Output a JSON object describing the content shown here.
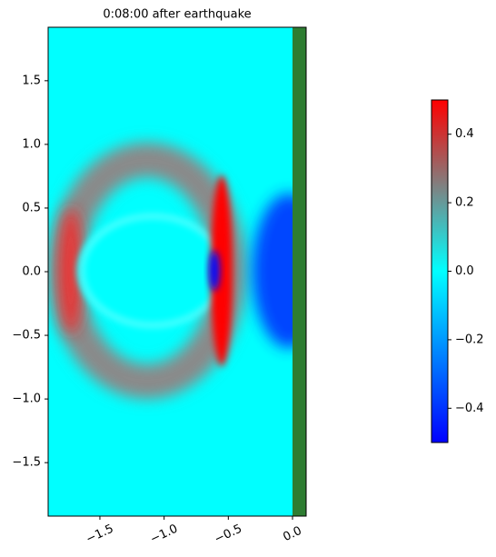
{
  "chart_data": {
    "type": "heatmap",
    "title": "0:08:00 after earthquake",
    "xlim": [
      -1.903,
      0.106
    ],
    "ylim": [
      -1.92,
      1.92
    ],
    "xticks": [
      {
        "value": -1.5,
        "label": "−1.5"
      },
      {
        "value": -1.0,
        "label": "−1.0"
      },
      {
        "value": -0.5,
        "label": "−0.5"
      },
      {
        "value": 0.0,
        "label": "0.0"
      }
    ],
    "yticks": [
      {
        "value": -1.5,
        "label": "−1.5"
      },
      {
        "value": -1.0,
        "label": "−1.0"
      },
      {
        "value": -0.5,
        "label": "−0.5"
      },
      {
        "value": 0.0,
        "label": "0.0"
      },
      {
        "value": 0.5,
        "label": "0.5"
      },
      {
        "value": 1.0,
        "label": "1.0"
      },
      {
        "value": 1.5,
        "label": "1.5"
      }
    ],
    "land_color": "#2e7d32",
    "colorbar": {
      "lim": [
        -0.5,
        0.5
      ],
      "ticks": [
        {
          "value": -0.4,
          "label": "−0.4"
        },
        {
          "value": -0.2,
          "label": "−0.2"
        },
        {
          "value": 0.0,
          "label": "0.0"
        },
        {
          "value": 0.2,
          "label": "0.2"
        },
        {
          "value": 0.4,
          "label": "0.4"
        }
      ],
      "colors": [
        "#0000ff",
        "#00ffff",
        "#808080",
        "#ff0000"
      ],
      "color_positions": [
        -0.5,
        0.0,
        0.25,
        0.5
      ]
    }
  }
}
